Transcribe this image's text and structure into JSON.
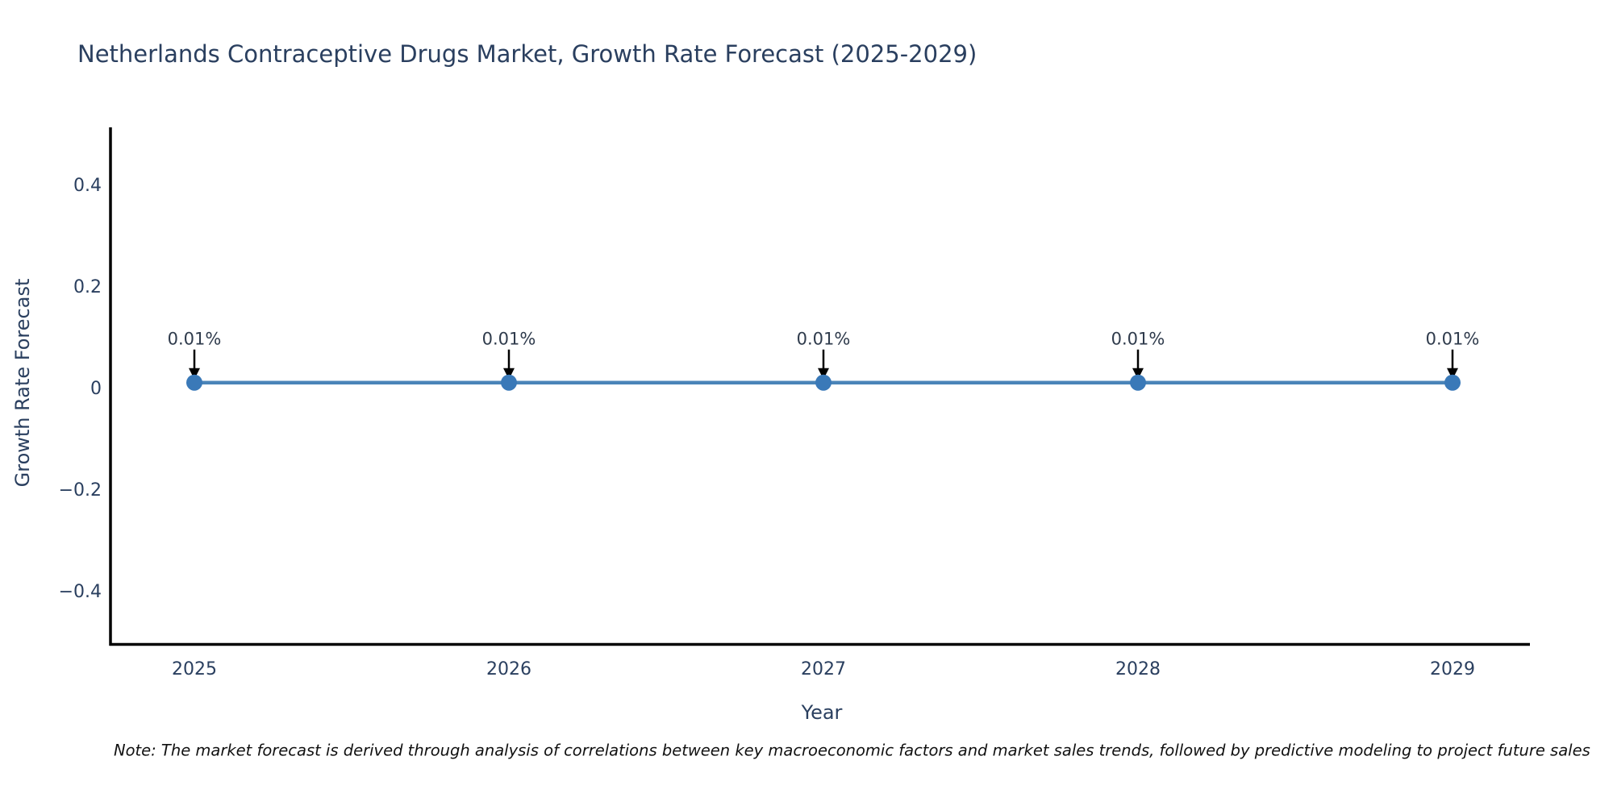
{
  "title": "Netherlands Contraceptive Drugs Market, Growth Rate Forecast (2025-2029)",
  "note": "Note: The market forecast is derived through analysis of correlations between key macroeconomic factors and market sales trends, followed by predictive modeling to project future sales",
  "chart_data": {
    "type": "line",
    "title": "Netherlands Contraceptive Drugs Market, Growth Rate Forecast (2025-2029)",
    "x": [
      2025,
      2026,
      2027,
      2028,
      2029
    ],
    "series": [
      {
        "name": "Growth Rate Forecast",
        "values": [
          0.01,
          0.01,
          0.01,
          0.01,
          0.01
        ]
      }
    ],
    "point_labels": [
      "0.01%",
      "0.01%",
      "0.01%",
      "0.01%",
      "0.01%"
    ],
    "xlabel": "Year",
    "ylabel": "Growth Rate Forecast",
    "yticks": [
      0.4,
      0.2,
      0,
      -0.2,
      -0.4
    ],
    "ylim": [
      -0.51,
      0.51
    ],
    "grid": false,
    "legend": "none",
    "annotation_arrow": "down-arrow-icon",
    "colors": {
      "line": "#4a84b8",
      "marker": "#3a79b8",
      "axis": "#000000",
      "text": "#2a3f5f",
      "annotation_text": "#2f3b4c",
      "note_text": "#111111"
    }
  }
}
